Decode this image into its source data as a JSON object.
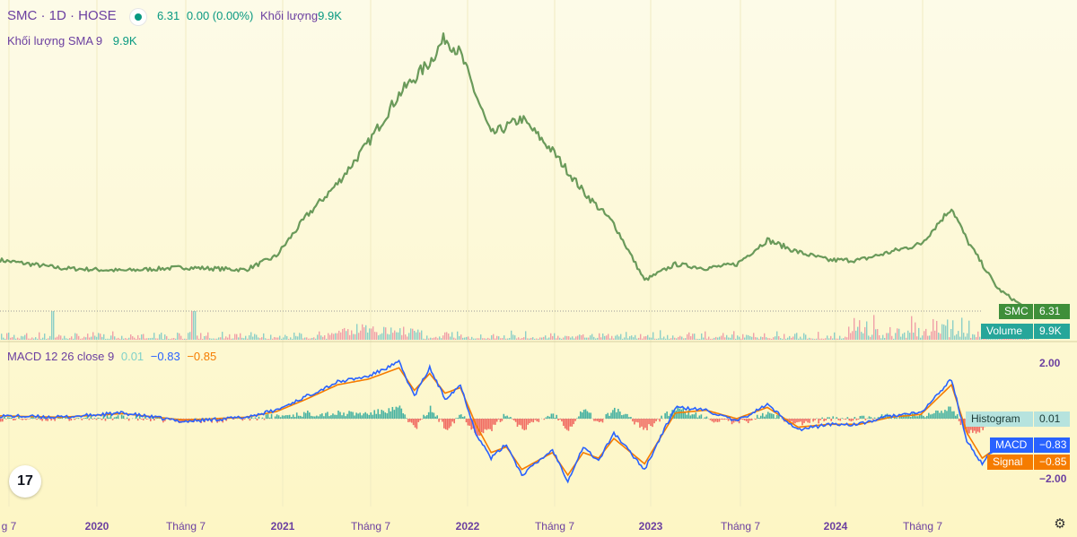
{
  "header": {
    "symbol": "SMC · 1D · HOSE",
    "status_dot_color": "#089981",
    "price": "6.31",
    "change": "0.00 (0.00%)",
    "volume_label": "Khối lượng",
    "volume_value": "9.9K",
    "sma_label": "Khối lượng SMA 9",
    "sma_value": "9.9K"
  },
  "macd_legend": {
    "label": "MACD 12 26 close 9",
    "histogram": "0.01",
    "macd": "−0.83",
    "signal": "−0.85"
  },
  "price_scale": {
    "smc_label": "SMC",
    "smc_value": "6.31",
    "volume_label": "Volume",
    "volume_value": "9.9K",
    "macd_top": "2.00",
    "macd_bottom": "−2.00",
    "histogram_label": "Histogram",
    "histogram_value": "0.01",
    "macd_label": "MACD",
    "macd_value": "−0.83",
    "signal_label": "Signal",
    "signal_value": "−0.85"
  },
  "time_axis": [
    "g 7",
    "2020",
    "Tháng 7",
    "2021",
    "Tháng 7",
    "2022",
    "Tháng 7",
    "2023",
    "Tháng 7",
    "2024",
    "Tháng 7"
  ],
  "icons": {
    "logo": "tradingview-logo-icon",
    "settings": "settings-icon"
  },
  "colors": {
    "price_line": "#6a9a5a",
    "macd": "#2962ff",
    "signal": "#f57c00",
    "hist_up": "#26a69a",
    "hist_down": "#ef5350",
    "text": "#6b3fa0"
  },
  "chart_data": [
    {
      "type": "line",
      "series": [
        {
          "name": "SMC",
          "x": [
            "2019-05",
            "2019-09",
            "2020-01",
            "2020-05",
            "2020-09",
            "2020-11",
            "2021-01",
            "2021-03",
            "2021-05",
            "2021-07",
            "2021-09",
            "2021-10",
            "2021-11",
            "2021-12",
            "2022-01",
            "2022-03",
            "2022-05",
            "2022-07",
            "2022-09",
            "2022-11",
            "2023-01",
            "2023-03",
            "2023-05",
            "2023-07",
            "2023-09",
            "2023-11",
            "2024-01",
            "2024-03",
            "2024-05",
            "2024-07",
            "2024-08",
            "2024-10",
            "2024-12"
          ],
          "values": [
            12.5,
            11.5,
            11.2,
            11.6,
            11.3,
            13,
            18,
            22,
            27,
            33,
            37,
            40,
            38,
            33,
            28,
            30,
            26,
            21,
            17,
            10,
            12,
            11.5,
            12,
            15,
            13.5,
            12.5,
            12.5,
            13.5,
            14.5,
            19,
            15,
            9,
            6.31
          ]
        }
      ]
    },
    {
      "type": "bar",
      "series": [
        {
          "name": "Volume",
          "last": "9.9K"
        }
      ]
    },
    {
      "type": "line",
      "title": "MACD 12 26 close 9",
      "ylim": [
        -2,
        2
      ],
      "series": [
        {
          "name": "MACD",
          "x": [
            "2019-05",
            "2019-09",
            "2020-01",
            "2020-05",
            "2020-09",
            "2020-11",
            "2021-01",
            "2021-03",
            "2021-05",
            "2021-07",
            "2021-08",
            "2021-09",
            "2021-10",
            "2021-11",
            "2021-12",
            "2022-01",
            "2022-02",
            "2022-03",
            "2022-05",
            "2022-06",
            "2022-07",
            "2022-08",
            "2022-09",
            "2022-11",
            "2023-01",
            "2023-03",
            "2023-05",
            "2023-07",
            "2023-09",
            "2023-11",
            "2024-01",
            "2024-03",
            "2024-05",
            "2024-07",
            "2024-08",
            "2024-09",
            "2024-10",
            "2024-12"
          ],
          "values": [
            0.1,
            0.05,
            0.2,
            -0.1,
            0.05,
            0.3,
            0.8,
            1.3,
            1.5,
            2.0,
            0.8,
            1.8,
            0.7,
            1.2,
            -0.5,
            -1.4,
            -0.9,
            -2.0,
            -1.1,
            -2.2,
            -1.0,
            -1.5,
            -0.5,
            -1.8,
            0.4,
            0.3,
            -0.1,
            0.5,
            -0.4,
            -0.2,
            -0.2,
            0.1,
            0.2,
            1.4,
            -0.8,
            -1.6,
            -0.9,
            -0.83
          ]
        },
        {
          "name": "Signal",
          "x": [
            "2019-05",
            "2019-09",
            "2020-01",
            "2020-05",
            "2020-09",
            "2020-11",
            "2021-01",
            "2021-03",
            "2021-05",
            "2021-07",
            "2021-08",
            "2021-09",
            "2021-10",
            "2021-11",
            "2021-12",
            "2022-01",
            "2022-02",
            "2022-03",
            "2022-05",
            "2022-06",
            "2022-07",
            "2022-08",
            "2022-09",
            "2022-11",
            "2023-01",
            "2023-03",
            "2023-05",
            "2023-07",
            "2023-09",
            "2023-11",
            "2024-01",
            "2024-03",
            "2024-05",
            "2024-07",
            "2024-08",
            "2024-09",
            "2024-10",
            "2024-12"
          ],
          "values": [
            0.1,
            0.05,
            0.18,
            -0.05,
            0.05,
            0.25,
            0.7,
            1.2,
            1.4,
            1.8,
            1.0,
            1.6,
            0.9,
            1.1,
            -0.2,
            -1.2,
            -1.0,
            -1.8,
            -1.2,
            -2.0,
            -1.2,
            -1.4,
            -0.7,
            -1.6,
            0.2,
            0.3,
            0.0,
            0.4,
            -0.3,
            -0.2,
            -0.2,
            0.05,
            0.15,
            1.2,
            -0.5,
            -1.4,
            -1.0,
            -0.85
          ]
        },
        {
          "name": "Histogram",
          "last": "0.01"
        }
      ]
    }
  ]
}
